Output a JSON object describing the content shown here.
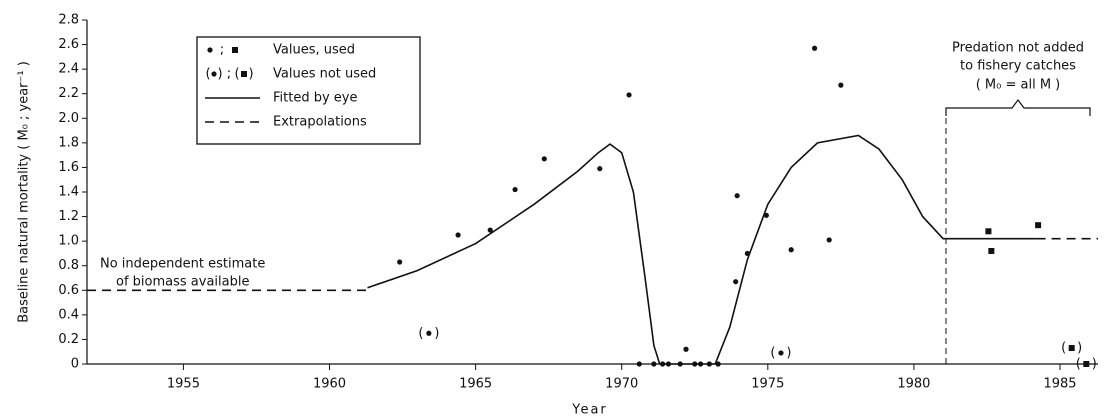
{
  "chart_data": {
    "type": "scatter",
    "xlabel": "Year",
    "ylabel": "Baseline natural mortality ( M₀ ; year⁻¹ )",
    "xlim": [
      1951.7,
      1986.3
    ],
    "xticks": [
      1955,
      1960,
      1965,
      1970,
      1975,
      1980,
      1985
    ],
    "ylim": [
      0,
      2.8
    ],
    "yticks": [
      0,
      0.2,
      0.4,
      0.6,
      0.8,
      {
        "value": 1,
        "label": "1.0"
      },
      1.2,
      1.4,
      1.6,
      1.8,
      {
        "value": 2,
        "label": "2.0"
      },
      2.2,
      2.4,
      2.6,
      2.8
    ],
    "color": "#111",
    "series": [
      {
        "name": "Values, used",
        "style": "points",
        "x": [
          1962.4,
          1964.4,
          1965.5,
          1966.35,
          1967.35,
          1969.25,
          1970.25,
          1970.6,
          1971.1,
          1971.4,
          1971.6,
          1972.0,
          1972.2,
          1972.5,
          1972.7,
          1973.0,
          1973.3,
          1973.9,
          1973.95,
          1974.3,
          1974.95,
          1975.8,
          1976.6,
          1977.1,
          1977.5,
          1982.55,
          1982.65,
          1984.25
        ],
        "values": [
          0.83,
          1.05,
          1.09,
          1.42,
          1.67,
          1.59,
          2.19,
          0,
          0,
          0,
          0,
          0,
          0.12,
          0,
          0,
          0,
          0,
          0.67,
          1.37,
          0.9,
          1.21,
          0.93,
          2.57,
          1.01,
          2.27,
          1.08,
          0.92,
          1.13
        ],
        "markers": [
          "circle",
          "circle",
          "circle",
          "circle",
          "circle",
          "circle",
          "circle",
          "circle",
          "circle",
          "circle",
          "circle",
          "circle",
          "circle",
          "circle",
          "circle",
          "circle",
          "circle",
          "circle",
          "circle",
          "circle",
          "circle",
          "circle",
          "circle",
          "circle",
          "circle",
          "square",
          "square",
          "square"
        ]
      },
      {
        "name": "Values not used",
        "style": "bracketed",
        "x": [
          1963.4,
          1975.45,
          1985.4,
          1985.9
        ],
        "values": [
          0.25,
          0.09,
          0.13,
          0
        ],
        "markers": [
          "circle",
          "circle",
          "square",
          "square"
        ]
      },
      {
        "name": "Fitted by eye",
        "style": "solid",
        "x": [
          1961.3,
          1963,
          1965,
          1967,
          1968.5,
          1969.2,
          1969.6,
          1970,
          1970.4,
          1970.8,
          1971.1,
          1971.3,
          1973.2,
          1973.7,
          1974.3,
          1975,
          1975.8,
          1976.7,
          1978.1,
          1978.8,
          1979.6,
          1980.3,
          1981,
          1984.2
        ],
        "values": [
          0.62,
          0.76,
          0.98,
          1.3,
          1.57,
          1.72,
          1.79,
          1.72,
          1.4,
          0.7,
          0.15,
          0,
          0,
          0.3,
          0.85,
          1.3,
          1.6,
          1.8,
          1.86,
          1.75,
          1.5,
          1.2,
          1.02,
          1.02
        ]
      },
      {
        "name": "Extrapolations",
        "style": "dashed",
        "x": [
          1951.7,
          1961.3,
          1970,
          1984.2,
          1986.3
        ],
        "values": [
          0.6,
          0.6,
          null,
          1.02,
          1.02
        ]
      }
    ],
    "annotations": [
      "No independent estimate",
      "of biomass available",
      "Predation not added",
      "to fishery catches",
      "( M₀ = all M )"
    ]
  }
}
